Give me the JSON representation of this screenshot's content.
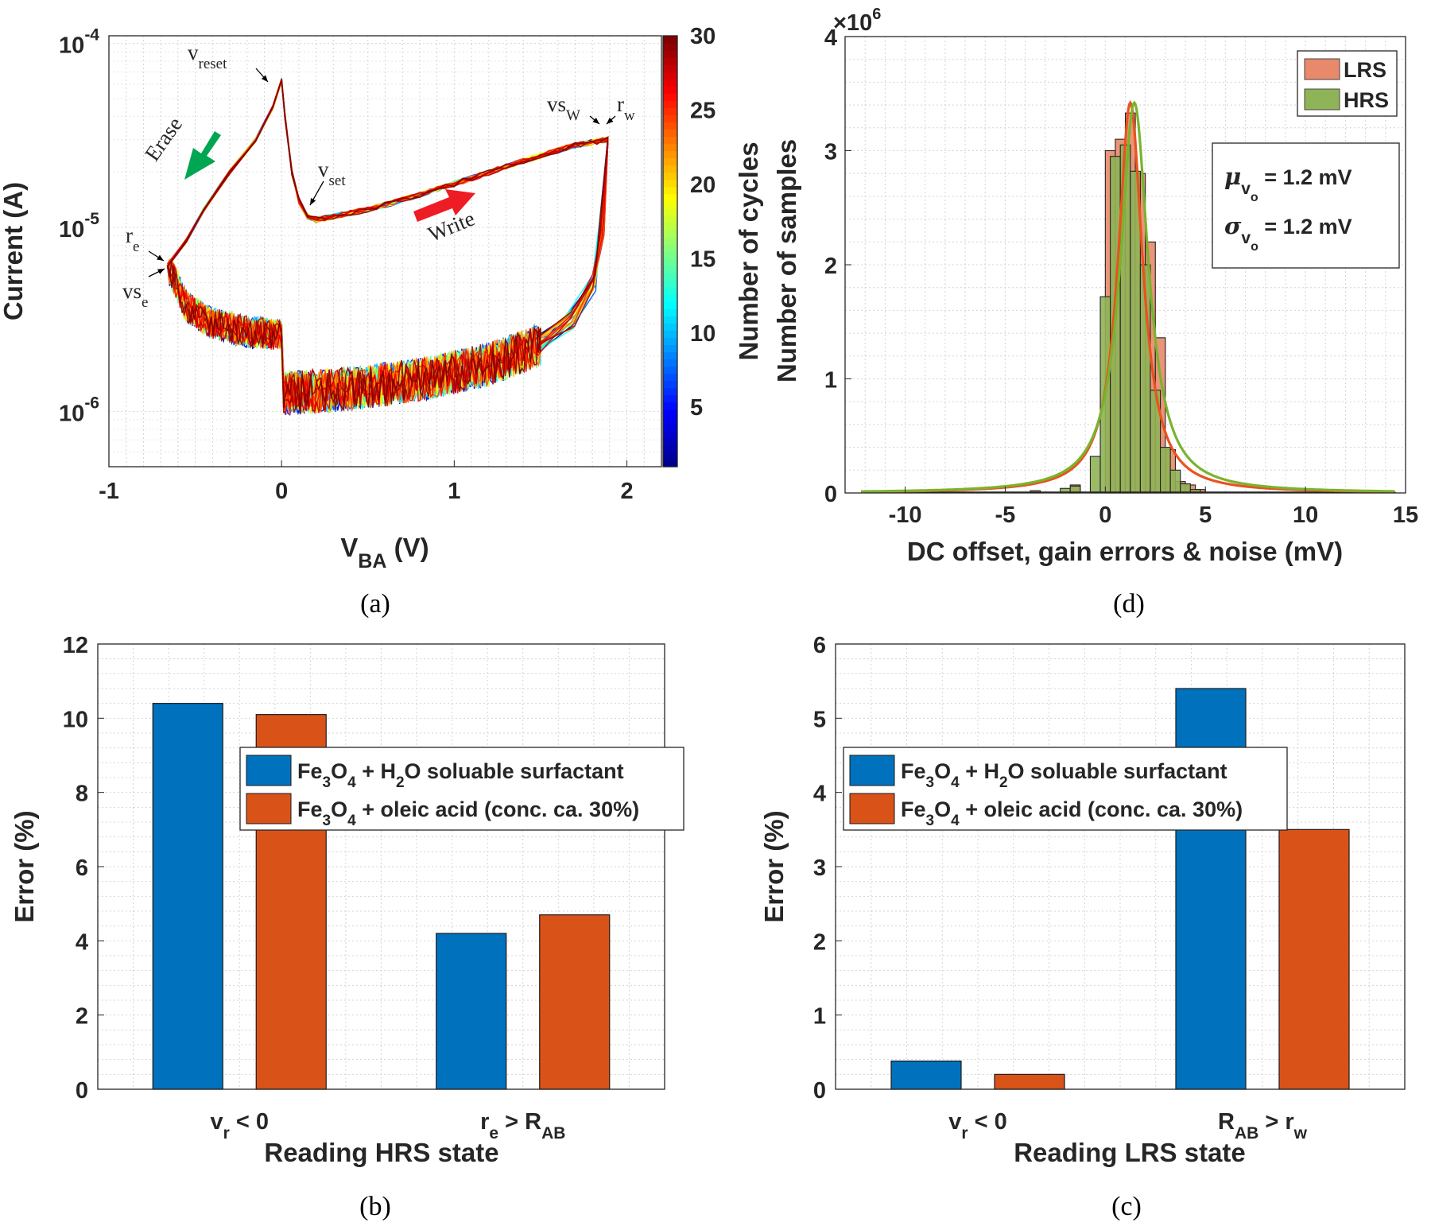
{
  "chart_data": [
    {
      "panel": "(a)",
      "type": "line",
      "xlabel": "V",
      "xlabel_sub": "BA",
      "xlabel_unit": " (V)",
      "ylabel": "Current (A)",
      "xlim": [
        -1,
        2.2
      ],
      "ylim": [
        5e-07,
        0.00011
      ],
      "y_scale": "log",
      "x_ticks": [
        "-1",
        "0",
        "1",
        "2"
      ],
      "y_ticks": [
        {
          "base": "10",
          "exp": "-4"
        },
        {
          "base": "10",
          "exp": "-5"
        },
        {
          "base": "10",
          "exp": "-6"
        }
      ],
      "colorbar": {
        "label": "Number of cycles",
        "ticks": [
          "30",
          "25",
          "20",
          "15",
          "10",
          "5"
        ],
        "range": [
          1,
          30
        ],
        "colormap": [
          "#00008f",
          "#0000ff",
          "#0080ff",
          "#00ffff",
          "#80ff80",
          "#ffff00",
          "#ff8000",
          "#ff0000",
          "#800000"
        ]
      },
      "curve_points": {
        "erase_branch": [
          [
            0.0,
            6.3e-05
          ],
          [
            -0.05,
            4.5e-05
          ],
          [
            -0.15,
            3e-05
          ],
          [
            -0.3,
            2e-05
          ],
          [
            -0.45,
            1.25e-05
          ],
          [
            -0.55,
            8.5e-06
          ],
          [
            -0.66,
            6.2e-06
          ]
        ],
        "peak_to_vset": [
          [
            0.0,
            6.3e-05
          ],
          [
            0.02,
            4e-05
          ],
          [
            0.06,
            2e-05
          ],
          [
            0.1,
            1.4e-05
          ],
          [
            0.15,
            1.15e-05
          ],
          [
            0.2,
            1.1e-05
          ]
        ],
        "write_branch": [
          [
            0.2,
            1.1e-05
          ],
          [
            0.5,
            1.25e-05
          ],
          [
            0.8,
            1.5e-05
          ],
          [
            1.1,
            1.85e-05
          ],
          [
            1.4,
            2.3e-05
          ],
          [
            1.7,
            2.8e-05
          ],
          [
            1.89,
            3e-05
          ]
        ],
        "hrs_right": [
          [
            1.89,
            3e-05
          ],
          [
            1.87,
            1e-05
          ],
          [
            1.82,
            5e-06
          ],
          [
            1.7,
            3.2e-06
          ],
          [
            1.5,
            2.3e-06
          ],
          [
            1.2,
            1.8e-06
          ],
          [
            0.9,
            1.55e-06
          ],
          [
            0.6,
            1.4e-06
          ],
          [
            0.3,
            1.3e-06
          ],
          [
            0.0,
            1.25e-06
          ]
        ],
        "hrs_left": [
          [
            0.0,
            2.6e-06
          ],
          [
            -0.2,
            2.7e-06
          ],
          [
            -0.4,
            3e-06
          ],
          [
            -0.55,
            3.7e-06
          ],
          [
            -0.66,
            6.2e-06
          ]
        ]
      },
      "annotations": {
        "v_reset": {
          "base": "v",
          "sub": "reset"
        },
        "v_set": {
          "base": "v",
          "sub": "set"
        },
        "r_e": {
          "base": "r",
          "sub": "e"
        },
        "vs_e": {
          "base": "vs",
          "sub": "e"
        },
        "vs_w": {
          "base": "vs",
          "sub": "W"
        },
        "r_w": {
          "base": "r",
          "sub": "w"
        },
        "erase": "Erase",
        "write": "Write"
      },
      "colors": {
        "erase": "#00a651",
        "write": "#ee1c25"
      }
    },
    {
      "panel": "(d)",
      "type": "bar",
      "xlabel": "DC offset, gain errors & noise (mV)",
      "ylabel": "Number of samples",
      "y_multiplier": {
        "base": "×10",
        "exp": "6"
      },
      "xlim": [
        -13,
        15
      ],
      "ylim": [
        0,
        4
      ],
      "x_ticks": [
        "-10",
        "-5",
        "0",
        "5",
        "10",
        "15"
      ],
      "y_ticks": [
        "0",
        "1",
        "2",
        "3",
        "4"
      ],
      "series": [
        {
          "name": "LRS",
          "color": "#e8896b",
          "fit_color": "#e8531f",
          "bins": [
            [
              -3.5,
              0.02
            ],
            [
              -1.5,
              0.07
            ],
            [
              0.25,
              3.0
            ],
            [
              0.75,
              3.1
            ],
            [
              1.25,
              3.33
            ],
            [
              1.75,
              2.8
            ],
            [
              2.25,
              2.2
            ],
            [
              2.75,
              1.36
            ],
            [
              3.25,
              0.38
            ],
            [
              3.75,
              0.1
            ],
            [
              4.25,
              0.07
            ],
            [
              4.75,
              0.03
            ]
          ]
        },
        {
          "name": "HRS",
          "color": "#8fb357",
          "fit_color": "#7ab32e",
          "bins": [
            [
              -2.0,
              0.04
            ],
            [
              -1.5,
              0.06
            ],
            [
              -0.5,
              0.32
            ],
            [
              0.0,
              1.72
            ],
            [
              0.5,
              2.95
            ],
            [
              1.0,
              3.05
            ],
            [
              1.5,
              2.82
            ],
            [
              2.0,
              2.0
            ],
            [
              2.5,
              0.9
            ],
            [
              3.0,
              0.4
            ],
            [
              3.5,
              0.2
            ],
            [
              4.0,
              0.08
            ],
            [
              4.5,
              0.03
            ]
          ]
        }
      ],
      "stats": [
        {
          "symbol": "μ",
          "sub": "v",
          "subsub": "o",
          "value": " = 1.2 mV"
        },
        {
          "symbol": "σ",
          "sub": "v",
          "subsub": "o",
          "value": " = 1.2 mV"
        }
      ]
    },
    {
      "panel": "(b)",
      "type": "bar",
      "xlabel": "Reading HRS state",
      "ylabel": "Error (%)",
      "ylim": [
        0,
        12
      ],
      "y_ticks": [
        "0",
        "2",
        "4",
        "6",
        "8",
        "10",
        "12"
      ],
      "categories": [
        {
          "parts": [
            [
              "v",
              ""
            ],
            [
              "r",
              "sub"
            ],
            [
              " < 0",
              ""
            ]
          ]
        },
        {
          "parts": [
            [
              "r",
              ""
            ],
            [
              "e",
              "sub"
            ],
            [
              " > R",
              ""
            ],
            [
              "AB",
              "sub"
            ]
          ]
        }
      ],
      "series": [
        {
          "name": "Fe3O4 + H2O soluable surfactant",
          "color": "#0072bd",
          "values": [
            10.4,
            4.2
          ]
        },
        {
          "name": "Fe3O4 + oleic acid (conc. ca. 30%)",
          "color": "#d95319",
          "values": [
            10.1,
            4.7
          ]
        }
      ]
    },
    {
      "panel": "(c)",
      "type": "bar",
      "xlabel": "Reading LRS state",
      "ylabel": "Error (%)",
      "ylim": [
        0,
        6
      ],
      "y_ticks": [
        "0",
        "1",
        "2",
        "3",
        "4",
        "5",
        "6"
      ],
      "categories": [
        {
          "parts": [
            [
              "v",
              ""
            ],
            [
              "r",
              "sub"
            ],
            [
              " < 0",
              ""
            ]
          ]
        },
        {
          "parts": [
            [
              "R",
              ""
            ],
            [
              "AB",
              "sub"
            ],
            [
              " > r",
              ""
            ],
            [
              "w",
              "sub"
            ]
          ]
        }
      ],
      "series": [
        {
          "name": "Fe3O4 + H2O soluable surfactant",
          "color": "#0072bd",
          "values": [
            0.38,
            5.4
          ]
        },
        {
          "name": "Fe3O4 + oleic acid (conc. ca. 30%)",
          "color": "#d95319",
          "values": [
            0.2,
            3.5
          ]
        }
      ]
    }
  ],
  "legend_bc": [
    {
      "parts": [
        [
          "Fe",
          ""
        ],
        [
          "3",
          "sub"
        ],
        [
          "O",
          ""
        ],
        [
          "4",
          "sub"
        ],
        [
          " + H",
          ""
        ],
        [
          "2",
          "sub"
        ],
        [
          "O soluable surfactant",
          ""
        ]
      ]
    },
    {
      "parts": [
        [
          "Fe",
          ""
        ],
        [
          "3",
          "sub"
        ],
        [
          "O",
          ""
        ],
        [
          "4",
          "sub"
        ],
        [
          " + oleic acid (conc. ca. 30%)",
          ""
        ]
      ]
    }
  ]
}
